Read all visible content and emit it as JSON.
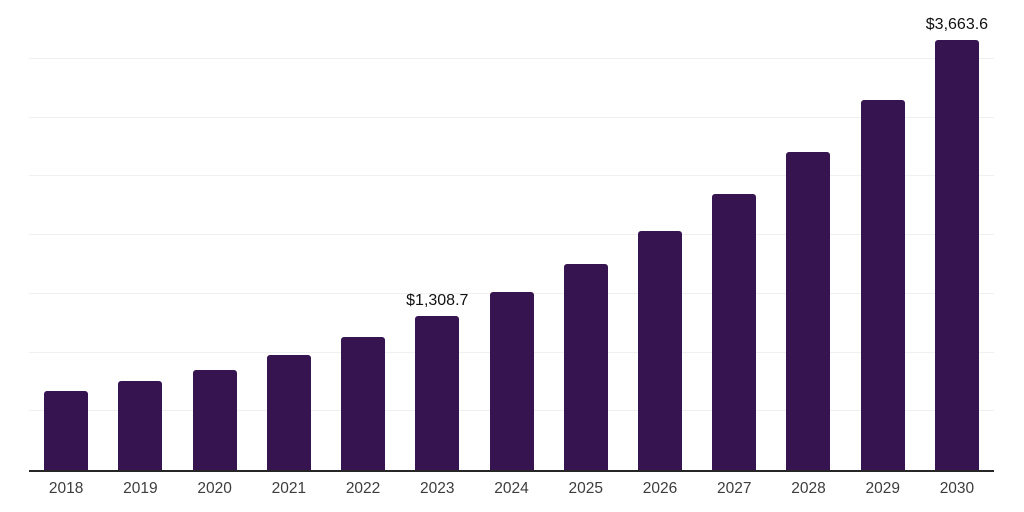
{
  "chart_data": {
    "type": "bar",
    "title": "",
    "xlabel": "",
    "ylabel": "",
    "categories": [
      "2018",
      "2019",
      "2020",
      "2021",
      "2022",
      "2023",
      "2024",
      "2025",
      "2026",
      "2027",
      "2028",
      "2029",
      "2030"
    ],
    "values": [
      675,
      755,
      855,
      975,
      1130,
      1308.7,
      1515,
      1750,
      2030,
      2350,
      2705,
      3150,
      3663.6
    ],
    "data_labels": [
      "",
      "",
      "",
      "",
      "",
      "$1,308.7",
      "",
      "",
      "",
      "",
      "",
      "",
      "$3,663.6"
    ],
    "ylim": [
      0,
      4000
    ],
    "gridline_step": 500,
    "grid": true,
    "legend": false,
    "colors": {
      "bar": "#361450",
      "axis_line": "#262626",
      "gridline": "#f0f0f0",
      "tick_label": "#3d3d3d",
      "data_label": "#111111"
    }
  }
}
